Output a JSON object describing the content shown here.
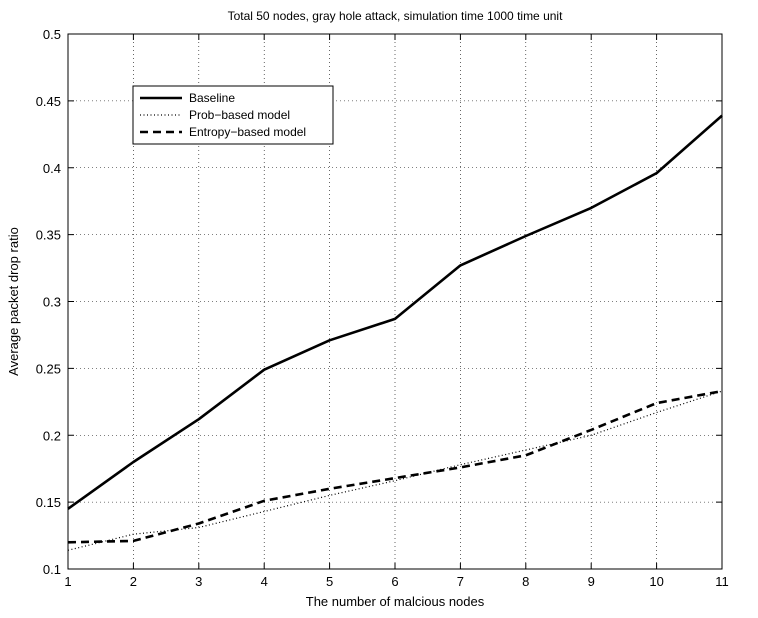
{
  "chart_data": {
    "type": "line",
    "title": "Total 50 nodes, gray hole attack, simulation time 1000 time unit",
    "xlabel": "The number of malcious nodes",
    "ylabel": "Average packet drop ratio",
    "xlim": [
      1,
      11
    ],
    "ylim": [
      0.1,
      0.5
    ],
    "xticks": [
      1,
      2,
      3,
      4,
      5,
      6,
      7,
      8,
      9,
      10,
      11
    ],
    "yticks": [
      0.1,
      0.15,
      0.2,
      0.25,
      0.3,
      0.35,
      0.4,
      0.45,
      0.5
    ],
    "ytick_labels": [
      "0.1",
      "0.15",
      "0.2",
      "0.25",
      "0.3",
      "0.35",
      "0.4",
      "0.45",
      "0.5"
    ],
    "grid": true,
    "legend_position": "top-left",
    "x": [
      1,
      2,
      3,
      4,
      5,
      6,
      7,
      8,
      9,
      10,
      11
    ],
    "series": [
      {
        "name": "Baseline",
        "style": "solid",
        "values": [
          0.145,
          0.18,
          0.212,
          0.249,
          0.271,
          0.287,
          0.327,
          0.349,
          0.37,
          0.396,
          0.439
        ]
      },
      {
        "name": "Prob−based model",
        "style": "dotted",
        "values": [
          0.114,
          0.126,
          0.131,
          0.143,
          0.155,
          0.166,
          0.178,
          0.189,
          0.2,
          0.217,
          0.233
        ]
      },
      {
        "name": "Entropy−based model",
        "style": "dashed",
        "values": [
          0.12,
          0.121,
          0.134,
          0.151,
          0.16,
          0.168,
          0.176,
          0.185,
          0.204,
          0.224,
          0.233
        ]
      }
    ]
  }
}
